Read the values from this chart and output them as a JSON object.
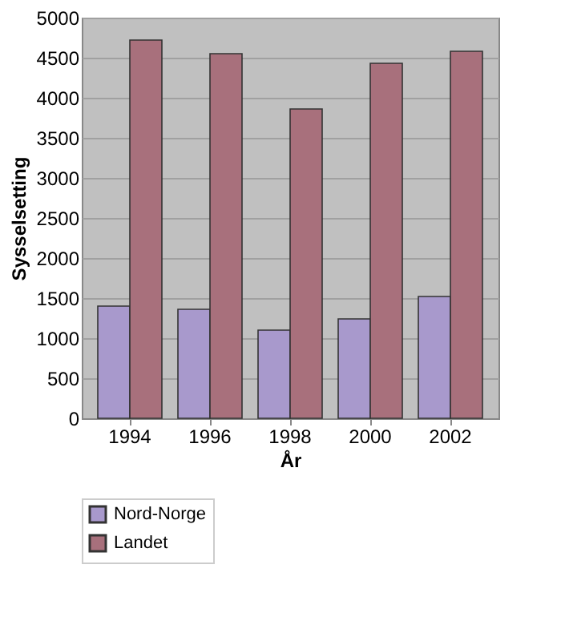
{
  "chart_data": {
    "type": "bar",
    "xlabel": "År",
    "ylabel": "Sysselsetting",
    "categories": [
      "1994",
      "1996",
      "1998",
      "2000",
      "2002"
    ],
    "series": [
      {
        "name": "Nord-Norge",
        "color": "#a899cc",
        "values": [
          1400,
          1360,
          1100,
          1240,
          1520
        ]
      },
      {
        "name": "Landet",
        "color": "#a8707c",
        "values": [
          4720,
          4550,
          3860,
          4430,
          4580
        ]
      }
    ],
    "ylim": [
      0,
      5000
    ],
    "yticks": [
      0,
      500,
      1000,
      1500,
      2000,
      2500,
      3000,
      3500,
      4000,
      4500,
      5000
    ],
    "grid": "y",
    "legend": "bottom"
  }
}
